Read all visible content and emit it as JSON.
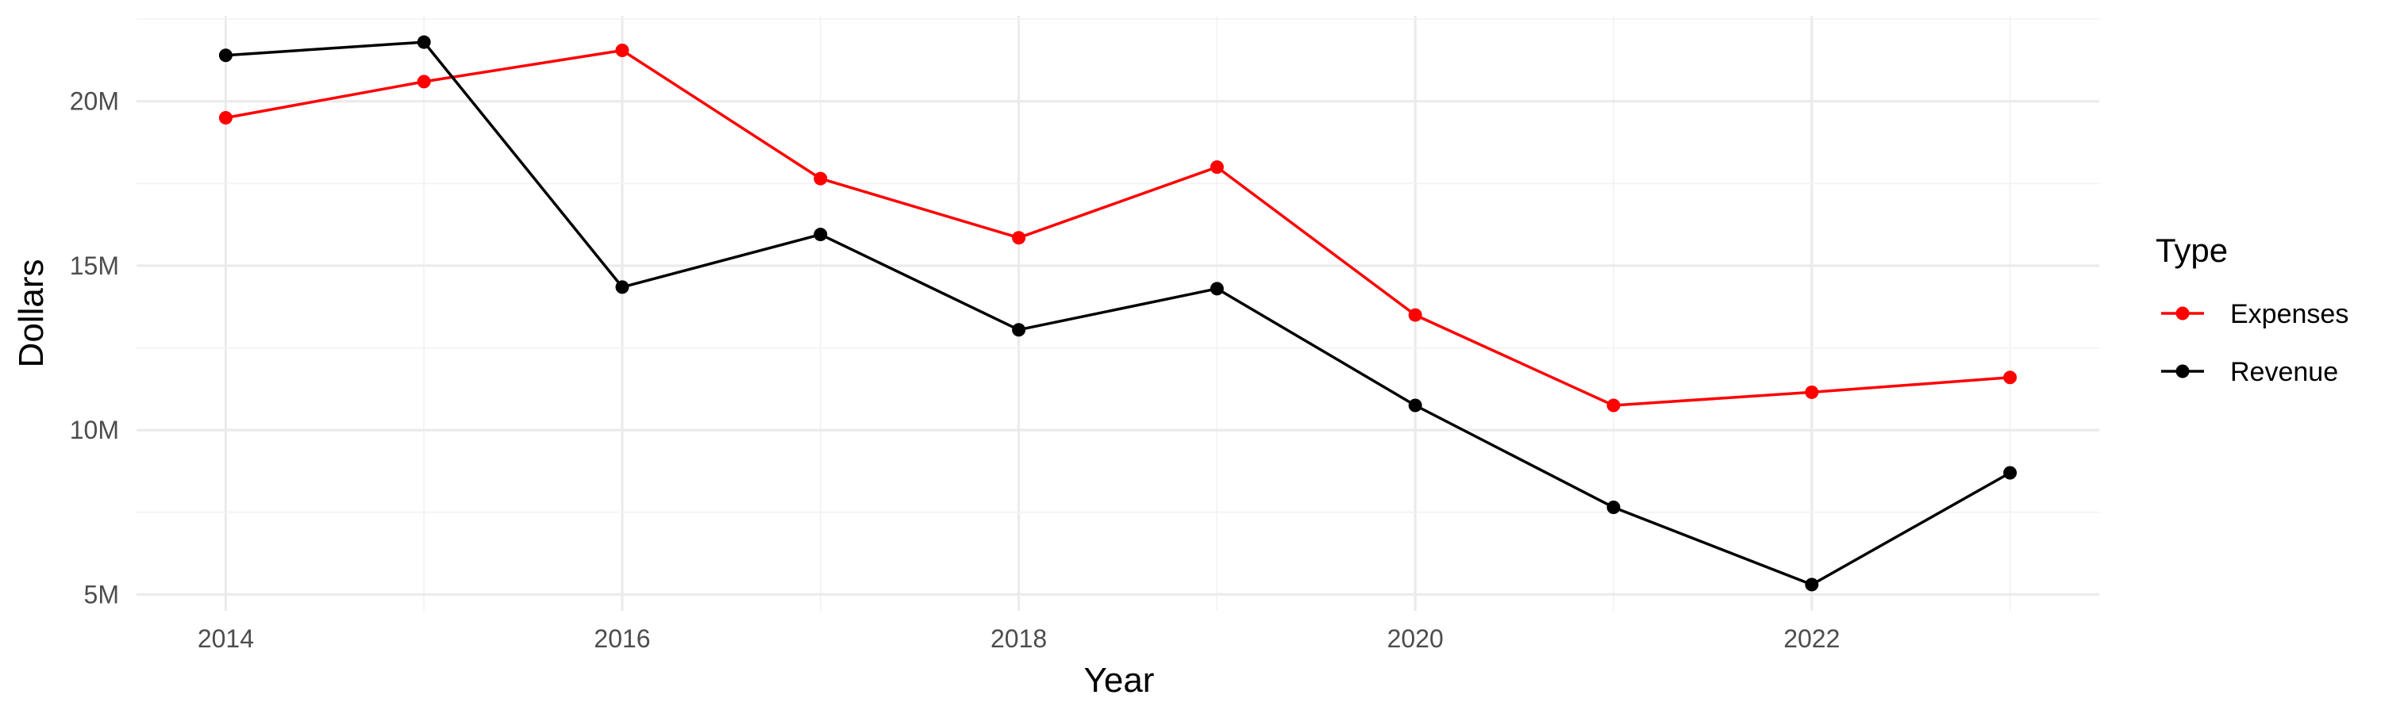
{
  "chart_data": {
    "type": "line",
    "title": "",
    "xlabel": "Year",
    "ylabel": "Dollars",
    "x": [
      2014,
      2015,
      2016,
      2017,
      2018,
      2019,
      2020,
      2021,
      2022,
      2023
    ],
    "xlim": [
      2013.55,
      2023.45
    ],
    "ylim": [
      4.5,
      22.6
    ],
    "x_ticks": [
      2014,
      2016,
      2018,
      2020,
      2022
    ],
    "y_ticks": [
      5,
      10,
      15,
      20
    ],
    "y_tick_labels": [
      "5M",
      "10M",
      "15M",
      "20M"
    ],
    "grid": true,
    "legend": {
      "title": "Type",
      "placement": "right"
    },
    "series": [
      {
        "name": "Expenses",
        "color": "#ff0000",
        "values": [
          19.5,
          20.6,
          21.55,
          17.65,
          15.85,
          18.0,
          13.5,
          10.75,
          11.15,
          11.6
        ]
      },
      {
        "name": "Revenue",
        "color": "#000000",
        "values": [
          21.4,
          21.8,
          14.35,
          15.95,
          13.05,
          14.3,
          10.75,
          7.65,
          5.3,
          8.7
        ]
      }
    ]
  }
}
